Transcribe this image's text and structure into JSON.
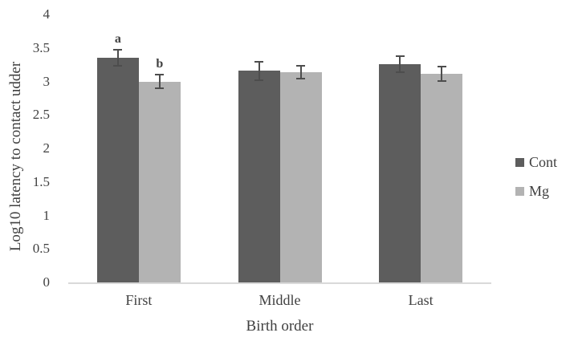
{
  "chart_data": {
    "type": "bar",
    "title": "",
    "xlabel": "Birth order",
    "ylabel": "Log10 latency to contact udder",
    "ylim": [
      0,
      4
    ],
    "ytick_labels": [
      "0",
      "0.5",
      "1",
      "1.5",
      "2",
      "2.5",
      "3",
      "3.5",
      "4"
    ],
    "categories": [
      "First",
      "Middle",
      "Last"
    ],
    "series": [
      {
        "name": "Cont",
        "color": "#5d5d5d",
        "values": [
          3.35,
          3.16,
          3.26
        ],
        "errors": [
          0.13,
          0.15,
          0.13
        ]
      },
      {
        "name": "Mg",
        "color": "#b3b3b3",
        "values": [
          3.0,
          3.14,
          3.11
        ],
        "errors": [
          0.11,
          0.11,
          0.12
        ]
      }
    ],
    "annotations": [
      {
        "category": "First",
        "series": "Cont",
        "label": "a"
      },
      {
        "category": "First",
        "series": "Mg",
        "label": "b"
      }
    ],
    "legend_position": "right",
    "grid": false,
    "colors": {
      "error_bar": "#4d4d4d",
      "axis_line": "#d9d9d9",
      "text": "#404040",
      "background": "#ffffff"
    }
  }
}
